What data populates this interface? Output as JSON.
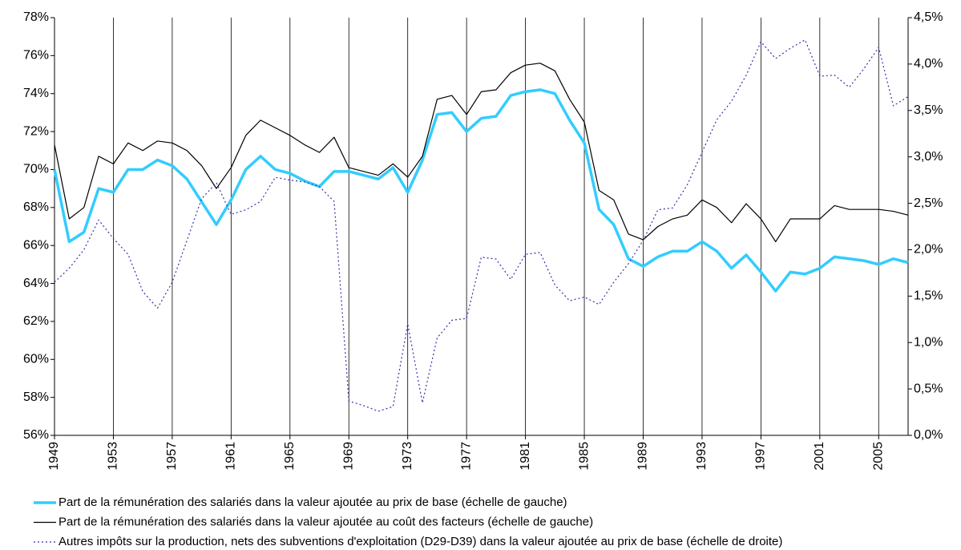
{
  "chart_data": {
    "type": "line",
    "x": [
      1949,
      1950,
      1951,
      1952,
      1953,
      1954,
      1955,
      1956,
      1957,
      1958,
      1959,
      1960,
      1961,
      1962,
      1963,
      1964,
      1965,
      1966,
      1967,
      1968,
      1969,
      1970,
      1971,
      1972,
      1973,
      1974,
      1975,
      1976,
      1977,
      1978,
      1979,
      1980,
      1981,
      1982,
      1983,
      1984,
      1985,
      1986,
      1987,
      1988,
      1989,
      1990,
      1991,
      1992,
      1993,
      1994,
      1995,
      1996,
      1997,
      1998,
      1999,
      2000,
      2001,
      2002,
      2003,
      2004,
      2005,
      2006,
      2007
    ],
    "xlim": [
      1949,
      2007
    ],
    "xticks": [
      1949,
      1953,
      1957,
      1961,
      1965,
      1969,
      1973,
      1977,
      1981,
      1985,
      1989,
      1993,
      1997,
      2001,
      2005
    ],
    "ylim": [
      56,
      78
    ],
    "yticks": [
      {
        "value": 56,
        "label": "56%"
      },
      {
        "value": 58,
        "label": "58%"
      },
      {
        "value": 60,
        "label": "60%"
      },
      {
        "value": 62,
        "label": "62%"
      },
      {
        "value": 64,
        "label": "64%"
      },
      {
        "value": 66,
        "label": "66%"
      },
      {
        "value": 68,
        "label": "68%"
      },
      {
        "value": 70,
        "label": "70%"
      },
      {
        "value": 72,
        "label": "72%"
      },
      {
        "value": 74,
        "label": "74%"
      },
      {
        "value": 76,
        "label": "76%"
      },
      {
        "value": 78,
        "label": "78%"
      }
    ],
    "y2lim": [
      0,
      4.5
    ],
    "y2ticks": [
      {
        "value": 0,
        "label": "0,0%"
      },
      {
        "value": 0.5,
        "label": "0,5%"
      },
      {
        "value": 1,
        "label": "1,0%"
      },
      {
        "value": 1.5,
        "label": "1,5%"
      },
      {
        "value": 2,
        "label": "2,0%"
      },
      {
        "value": 2.5,
        "label": "2,5%"
      },
      {
        "value": 3,
        "label": "3,0%"
      },
      {
        "value": 3.5,
        "label": "3,5%"
      },
      {
        "value": 4,
        "label": "4,0%"
      },
      {
        "value": 4.5,
        "label": "4,5%"
      }
    ],
    "grid": "x",
    "series": [
      {
        "name": "Part de la rémunération des salariés dans la valeur ajoutée au prix de base (échelle de gauche)",
        "color": "#33ccff",
        "width": 3.5,
        "values": [
          70.0,
          66.2,
          66.7,
          69.0,
          68.8,
          70.0,
          70.0,
          70.5,
          70.2,
          69.5,
          68.3,
          67.1,
          68.4,
          70.0,
          70.7,
          70.0,
          69.8,
          69.4,
          69.1,
          69.9,
          69.9,
          69.7,
          69.5,
          70.1,
          68.8,
          70.5,
          72.9,
          73.0,
          72.0,
          72.7,
          72.8,
          73.9,
          74.1,
          74.2,
          74.0,
          72.6,
          71.4,
          67.9,
          67.1,
          65.3,
          64.9,
          65.4,
          65.7,
          65.7,
          66.2,
          65.7,
          64.8,
          65.5,
          64.6,
          63.6,
          64.6,
          64.5,
          64.8,
          65.4,
          65.3,
          65.2,
          65.0,
          65.3,
          65.1
        ]
      },
      {
        "name": "Part de la rémunération des salariés dans la valeur ajoutée au coût des facteurs (échelle de gauche)",
        "color": "#000000",
        "width": 1.2,
        "values": [
          71.3,
          67.4,
          68.0,
          70.7,
          70.3,
          71.4,
          71.0,
          71.5,
          71.4,
          71.0,
          70.2,
          69.0,
          70.1,
          71.8,
          72.6,
          72.2,
          71.8,
          71.3,
          70.9,
          71.7,
          70.1,
          69.9,
          69.7,
          70.3,
          69.6,
          70.7,
          73.7,
          73.9,
          72.9,
          74.1,
          74.2,
          75.1,
          75.5,
          75.6,
          75.2,
          73.7,
          72.5,
          68.9,
          68.4,
          66.6,
          66.3,
          67.0,
          67.4,
          67.6,
          68.4,
          68.0,
          67.2,
          68.2,
          67.4,
          66.2,
          67.4,
          67.4,
          67.4,
          68.1,
          67.9,
          67.9,
          67.9,
          67.8,
          67.6
        ]
      },
      {
        "name": "Autres impôts sur la production, nets des subventions d'exploitation (D29-D39) dans la valeur ajoutée au prix de base (échelle de droite)",
        "color": "#3333aa",
        "width": 1.2,
        "style": "dotted",
        "axis": "y2",
        "values": [
          1.65,
          1.8,
          2.0,
          2.32,
          2.12,
          1.95,
          1.55,
          1.37,
          1.65,
          2.1,
          2.55,
          2.72,
          2.38,
          2.43,
          2.52,
          2.78,
          2.75,
          2.73,
          2.68,
          2.52,
          0.37,
          0.32,
          0.26,
          0.31,
          1.2,
          0.35,
          1.05,
          1.24,
          1.26,
          1.92,
          1.9,
          1.68,
          1.95,
          1.97,
          1.62,
          1.45,
          1.49,
          1.41,
          1.65,
          1.85,
          2.1,
          2.43,
          2.45,
          2.7,
          3.05,
          3.4,
          3.6,
          3.88,
          4.24,
          4.06,
          4.17,
          4.26,
          3.87,
          3.88,
          3.75,
          3.95,
          4.18,
          3.55,
          3.65
        ]
      }
    ]
  }
}
